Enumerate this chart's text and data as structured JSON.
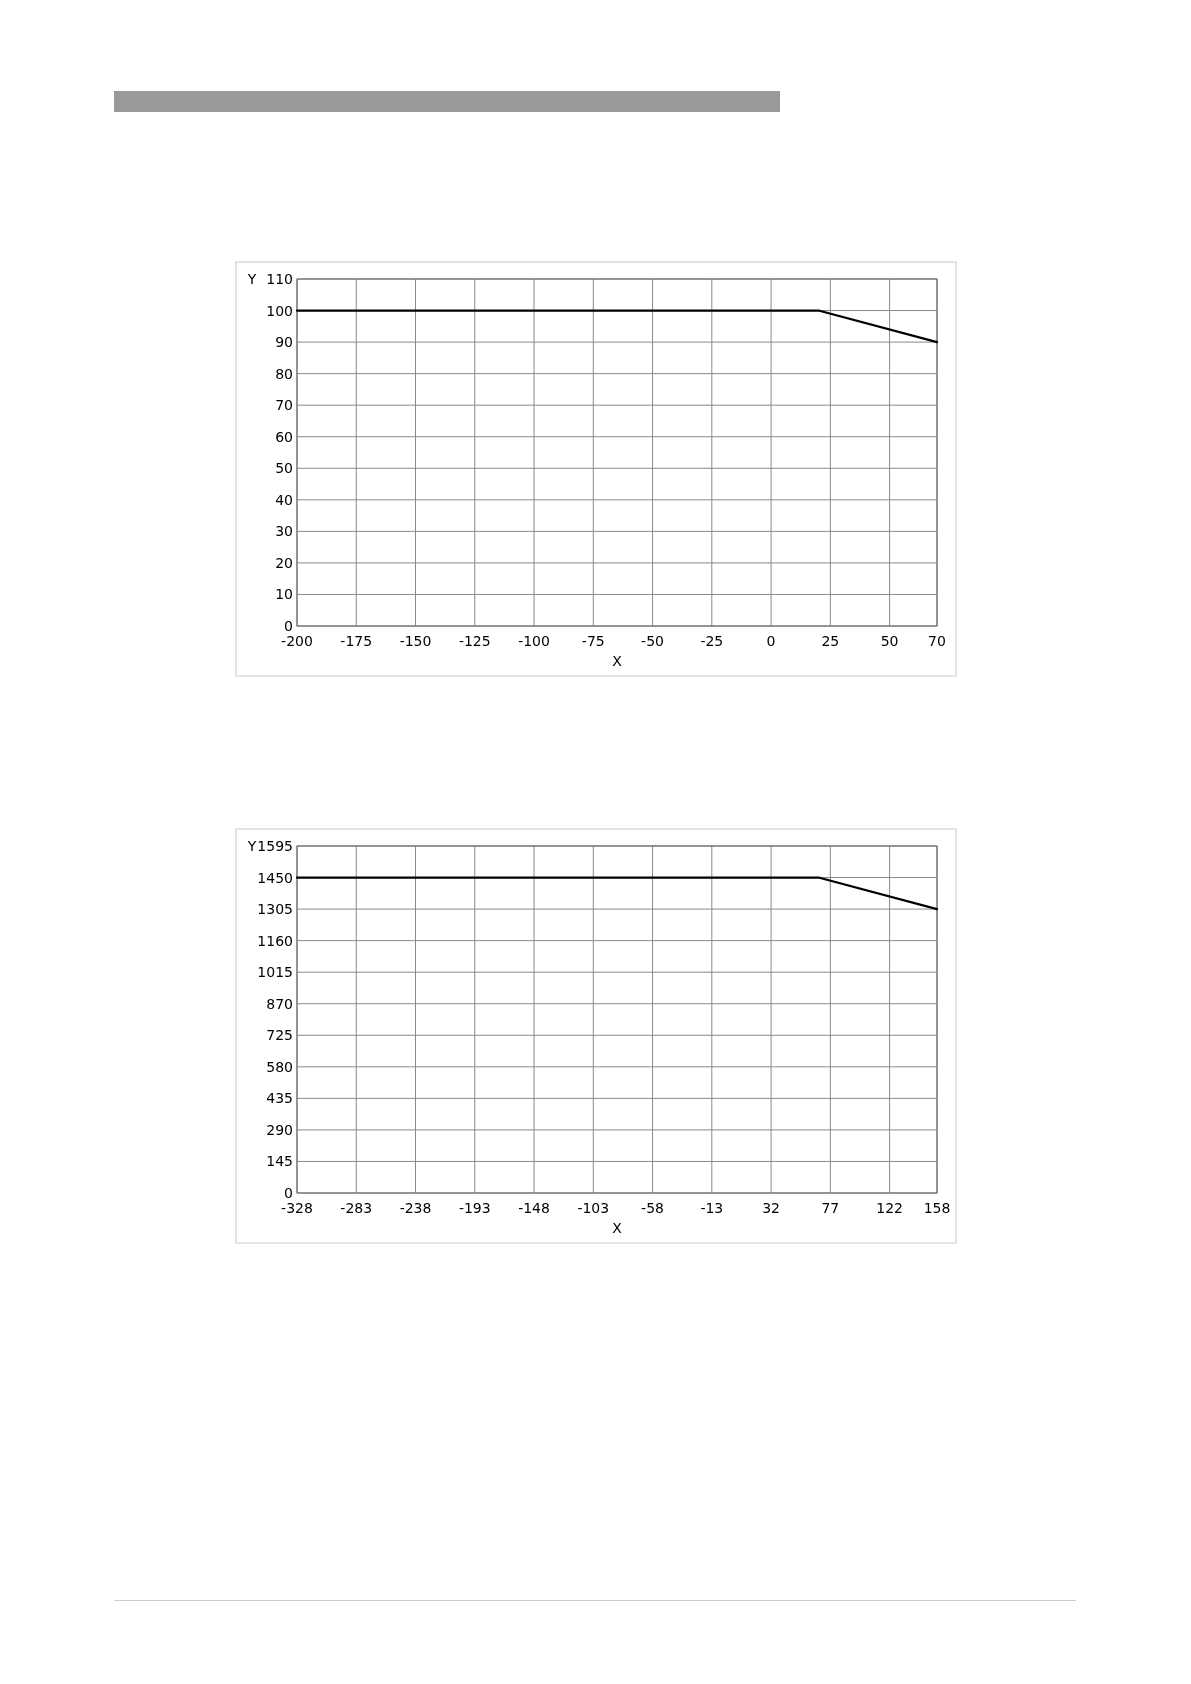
{
  "chart_data": [
    {
      "type": "line",
      "xlabel": "X",
      "ylabel": "Y",
      "xlim": [
        -200,
        70
      ],
      "ylim": [
        0,
        110
      ],
      "xticks": [
        -200,
        -175,
        -150,
        -125,
        -100,
        -75,
        -50,
        -25,
        0,
        25,
        50,
        70
      ],
      "yticks": [
        0,
        10,
        20,
        30,
        40,
        50,
        60,
        70,
        80,
        90,
        100,
        110
      ],
      "grid": true,
      "series": [
        {
          "color": "#000000",
          "x": [
            -200,
            20,
            70
          ],
          "values": [
            100,
            100,
            90
          ]
        }
      ]
    },
    {
      "type": "line",
      "xlabel": "X",
      "ylabel": "Y",
      "xlim": [
        -328,
        158
      ],
      "ylim": [
        0,
        1595
      ],
      "xticks": [
        -328,
        -283,
        -238,
        -193,
        -148,
        -103,
        -58,
        -13,
        32,
        77,
        122,
        158
      ],
      "yticks": [
        0,
        145,
        290,
        435,
        580,
        725,
        870,
        1015,
        1160,
        1305,
        1450,
        1595
      ],
      "grid": true,
      "series": [
        {
          "color": "#000000",
          "x": [
            -328,
            68,
            158
          ],
          "values": [
            1450,
            1450,
            1305
          ]
        }
      ]
    }
  ]
}
